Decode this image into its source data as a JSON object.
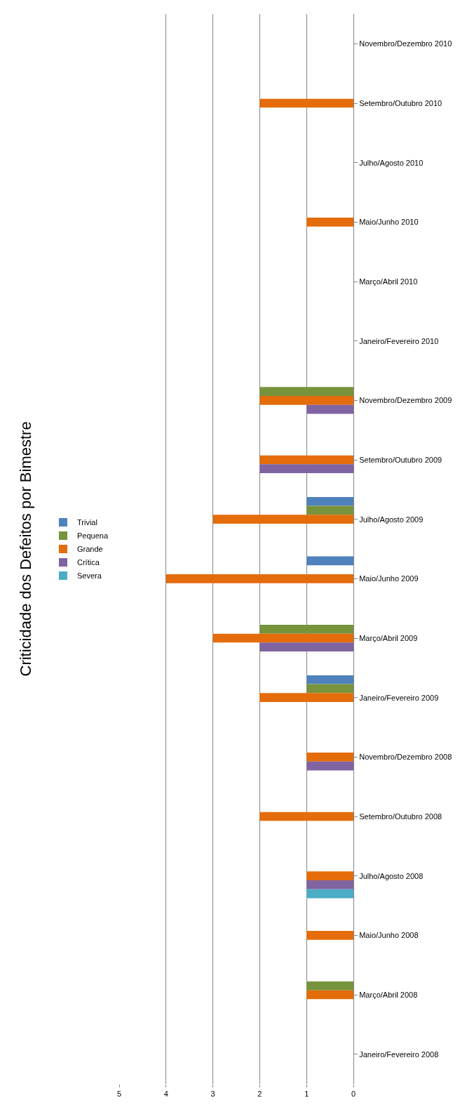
{
  "chart_data": {
    "type": "bar",
    "orientation": "horizontal",
    "title": "Criticidade dos Defeitos por Bimestre",
    "categories": [
      "Novembro/Dezembro 2010",
      "Setembro/Outubro 2010",
      "Julho/Agosto 2010",
      "Maio/Junho 2010",
      "Março/Abril 2010",
      "Janeiro/Fevereiro 2010",
      "Novembro/Dezembro 2009",
      "Setembro/Outubro 2009",
      "Julho/Agosto 2009",
      "Maio/Junho 2009",
      "Março/Abril 2009",
      "Janeiro/Fevereiro 2009",
      "Novembro/Dezembro 2008",
      "Setembro/Outubro 2008",
      "Julho/Agosto 2008",
      "Maio/Junho 2008",
      "Março/Abril 2008",
      "Janeiro/Fevereiro 2008"
    ],
    "series": [
      {
        "name": "Trivial",
        "color": "#4f81bd",
        "values": [
          0,
          0,
          0,
          0,
          0,
          0,
          0,
          0,
          1,
          1,
          0,
          1,
          0,
          0,
          0,
          0,
          0,
          0
        ]
      },
      {
        "name": "Pequena",
        "color": "#77933c",
        "values": [
          0,
          0,
          0,
          0,
          0,
          0,
          2,
          0,
          1,
          0,
          2,
          1,
          0,
          0,
          0,
          0,
          1,
          0
        ]
      },
      {
        "name": "Grande",
        "color": "#e46c0a",
        "values": [
          0,
          2,
          0,
          1,
          0,
          0,
          2,
          2,
          3,
          4,
          3,
          2,
          1,
          2,
          1,
          1,
          1,
          0
        ]
      },
      {
        "name": "Crítica",
        "color": "#8064a2",
        "values": [
          0,
          0,
          0,
          0,
          0,
          0,
          1,
          2,
          0,
          0,
          2,
          0,
          1,
          0,
          1,
          0,
          0,
          0
        ]
      },
      {
        "name": "Severa",
        "color": "#4bacc6",
        "values": [
          0,
          0,
          0,
          0,
          0,
          0,
          0,
          0,
          0,
          0,
          0,
          0,
          0,
          0,
          1,
          0,
          0,
          0
        ]
      }
    ],
    "xlim": [
      5,
      0
    ],
    "xticks": [
      0,
      1,
      2,
      3,
      4,
      5
    ],
    "grid": "x",
    "legend": "left"
  }
}
